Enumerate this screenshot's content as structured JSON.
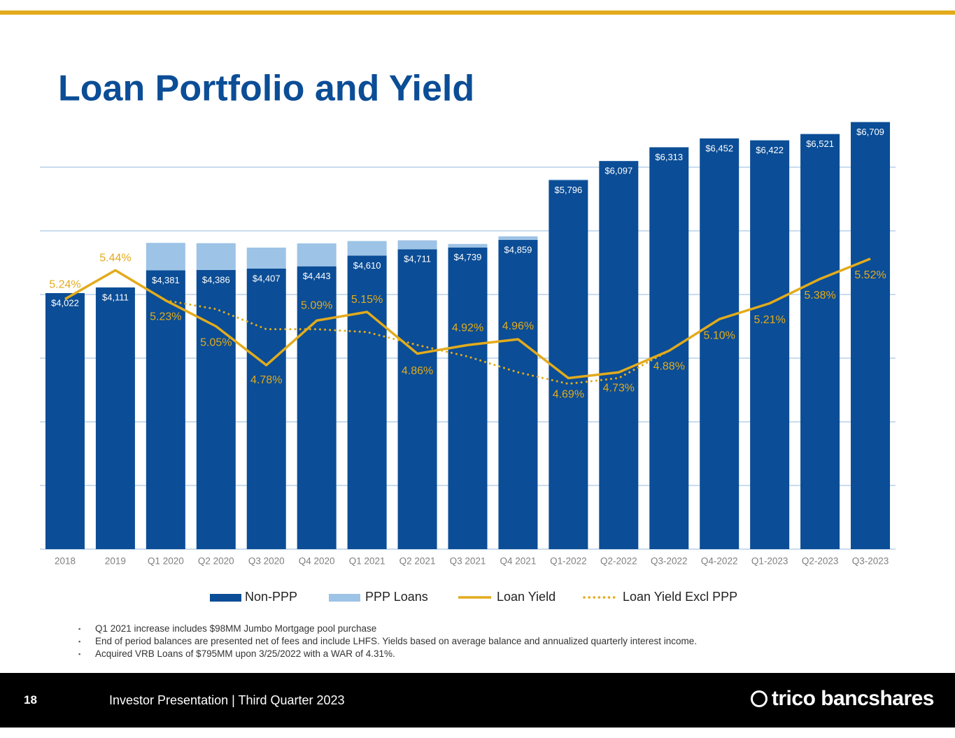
{
  "chart_data": {
    "type": "bar-line",
    "title": "Loan Portfolio and Yield",
    "categories": [
      "2018",
      "2019",
      "Q1 2020",
      "Q2 2020",
      "Q3 2020",
      "Q4 2020",
      "Q1 2021",
      "Q2 2021",
      "Q3 2021",
      "Q4 2021",
      "Q1-2022",
      "Q2-2022",
      "Q3-2022",
      "Q4-2022",
      "Q1-2023",
      "Q2-2023",
      "Q3-2023"
    ],
    "series": [
      {
        "name": "Non-PPP",
        "type": "bar",
        "color": "#0b4d96",
        "values": [
          4022,
          4111,
          4381,
          4386,
          4407,
          4443,
          4610,
          4711,
          4739,
          4859,
          5796,
          6097,
          6313,
          6452,
          6422,
          6521,
          6709
        ],
        "value_labels": [
          "$4,022",
          "$4,111",
          "$4,381",
          "$4,386",
          "$4,407",
          "$4,443",
          "$4,610",
          "$4,711",
          "$4,739",
          "$4,859",
          "$5,796",
          "$6,097",
          "$6,313",
          "$6,452",
          "$6,422",
          "$6,521",
          "$6,709"
        ]
      },
      {
        "name": "PPP Loans",
        "type": "bar",
        "color": "#9dc3e6",
        "values": [
          0,
          0,
          430,
          420,
          330,
          360,
          230,
          140,
          55,
          55,
          10,
          0,
          0,
          0,
          0,
          0,
          0
        ]
      },
      {
        "name": "Loan Yield",
        "type": "line",
        "axis": "y2",
        "color": "#e2ab1c",
        "dash": "solid",
        "values": [
          5.24,
          5.44,
          5.23,
          5.05,
          4.78,
          5.09,
          5.15,
          4.86,
          4.92,
          4.96,
          4.69,
          4.73,
          4.88,
          5.1,
          5.21,
          5.38,
          5.52
        ],
        "value_labels": [
          "5.24%",
          "5.44%",
          "5.23%",
          "5.05%",
          "4.78%",
          "5.09%",
          "5.15%",
          "4.86%",
          "4.92%",
          "4.96%",
          "4.69%",
          "4.73%",
          "4.88%",
          "5.10%",
          "5.21%",
          "5.38%",
          "5.52%"
        ]
      },
      {
        "name": "Loan Yield Excl PPP",
        "type": "line",
        "axis": "y2",
        "color": "#e2ab1c",
        "dash": "dotted",
        "values": [
          null,
          null,
          5.23,
          5.17,
          5.03,
          5.03,
          5.01,
          4.92,
          4.84,
          4.73,
          4.65,
          4.69,
          4.88,
          null,
          null,
          null,
          null
        ]
      }
    ],
    "ylim": [
      0,
      7000
    ],
    "yticks": [
      0,
      1000,
      2000,
      3000,
      4000,
      5000,
      6000
    ],
    "y2lim": [
      3.5,
      6.6
    ],
    "grid": true,
    "legend": "bottom"
  },
  "notes": [
    "Q1 2021 increase includes $98MM Jumbo Mortgage pool purchase",
    "End of period balances are presented net of fees and include LHFS.  Yields based on average balance and annualized quarterly interest income.",
    "Acquired VRB Loans of $795MM upon 3/25/2022 with a WAR of 4.31%."
  ],
  "footer": {
    "page_number": "18",
    "text": "Investor Presentation | Third Quarter 2023",
    "logo": "trico bancshares"
  }
}
